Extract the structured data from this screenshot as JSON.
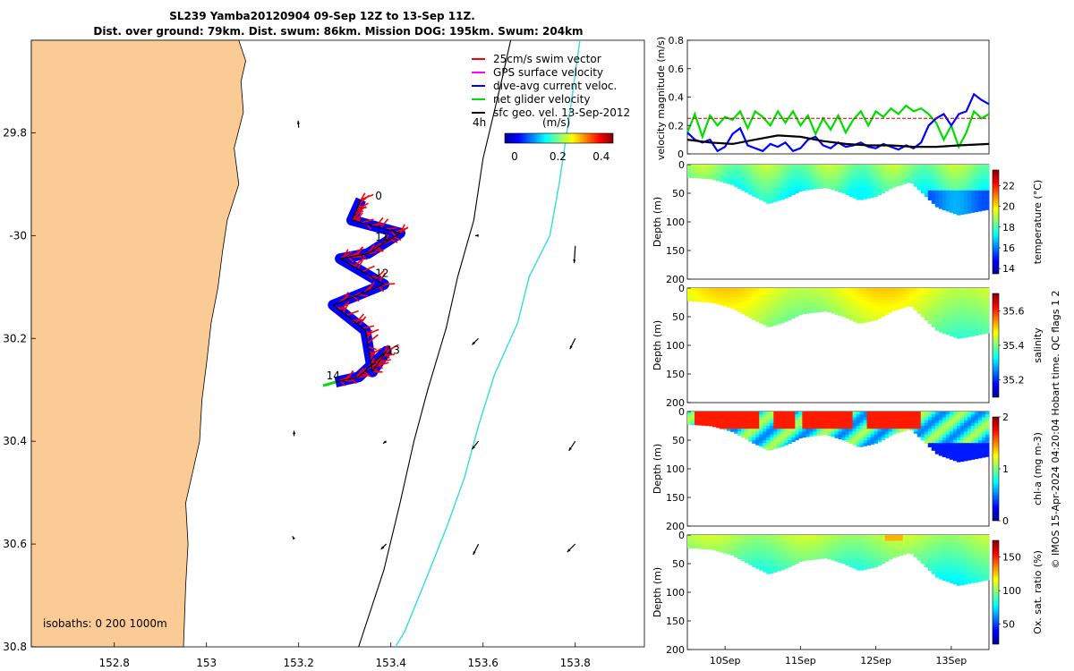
{
  "chart_data": [
    {
      "type": "map",
      "title_lines": [
        "SL239 Yamba20120904 09-Sep 12Z to 13-Sep 11Z.",
        "Dist. over ground: 79km. Dist. swum: 86km. Mission DOG: 195km. Swum: 204km"
      ],
      "xlim": [
        152.62,
        153.95
      ],
      "ylim": [
        -30.8,
        -29.62
      ],
      "x_ticks": [
        152.8,
        153.0,
        153.2,
        153.4,
        153.6,
        153.8
      ],
      "x_tick_labels": [
        "152.8",
        "153",
        "153.2",
        "153.4",
        "153.6",
        "153.8"
      ],
      "y_ticks": [
        -29.8,
        -30.0,
        -30.2,
        -30.4,
        -30.6,
        -30.8
      ],
      "y_tick_labels": [
        "29.8",
        "-30",
        "30.2",
        "30.4",
        "30.6",
        "30.8"
      ],
      "legend": [
        {
          "label": "25cm/s swim vector",
          "color": "#ff0000"
        },
        {
          "label": "GPS surface velocity",
          "color": "#ff00ff"
        },
        {
          "label": "dive-avg current veloc.",
          "color": "#0000ff"
        },
        {
          "label": "net glider velocity",
          "color": "#00dd00"
        },
        {
          "label": "sfc geo. vel. 13-Sep-2012",
          "color": "#000000"
        }
      ],
      "colorbar": {
        "label": "(m/s)",
        "ticks": [
          "0",
          "0.2",
          "0.4"
        ],
        "range": [
          0,
          0.5
        ],
        "note": "4h"
      },
      "isobath_label": "isobaths: 0   200  1000m",
      "day_labels": [
        {
          "text": "0",
          "lon": 153.366,
          "lat": -29.93
        },
        {
          "text": "11",
          "lon": 153.366,
          "lat": -30.01
        },
        {
          "text": "12",
          "lon": 153.366,
          "lat": -30.08
        },
        {
          "text": "13",
          "lon": 153.39,
          "lat": -30.23
        },
        {
          "text": "14",
          "lon": 153.26,
          "lat": -30.28
        }
      ],
      "track": [
        [
          153.335,
          -29.93
        ],
        [
          153.315,
          -29.97
        ],
        [
          153.42,
          -29.995
        ],
        [
          153.35,
          -30.035
        ],
        [
          153.29,
          -30.045
        ],
        [
          153.385,
          -30.095
        ],
        [
          153.275,
          -30.135
        ],
        [
          153.345,
          -30.185
        ],
        [
          153.36,
          -30.265
        ],
        [
          153.39,
          -30.225
        ],
        [
          153.33,
          -30.275
        ],
        [
          153.28,
          -30.285
        ]
      ],
      "coast": [
        [
          152.62,
          -29.62
        ],
        [
          153.07,
          -29.62
        ],
        [
          153.085,
          -29.66
        ],
        [
          153.075,
          -29.7
        ],
        [
          153.08,
          -29.76
        ],
        [
          153.06,
          -29.83
        ],
        [
          153.07,
          -29.9
        ],
        [
          153.045,
          -29.97
        ],
        [
          153.035,
          -30.03
        ],
        [
          153.025,
          -30.1
        ],
        [
          153.01,
          -30.17
        ],
        [
          153.0,
          -30.25
        ],
        [
          152.99,
          -30.32
        ],
        [
          152.985,
          -30.4
        ],
        [
          152.97,
          -30.46
        ],
        [
          152.955,
          -30.52
        ],
        [
          152.96,
          -30.6
        ],
        [
          152.955,
          -30.68
        ],
        [
          152.95,
          -30.8
        ],
        [
          152.62,
          -30.8
        ]
      ],
      "isobath_200": [
        [
          153.66,
          -29.62
        ],
        [
          153.64,
          -29.7
        ],
        [
          153.6,
          -29.85
        ],
        [
          153.58,
          -29.97
        ],
        [
          153.545,
          -30.08
        ],
        [
          153.52,
          -30.18
        ],
        [
          153.48,
          -30.3
        ],
        [
          153.45,
          -30.4
        ],
        [
          153.42,
          -30.52
        ],
        [
          153.385,
          -30.65
        ],
        [
          153.33,
          -30.8
        ]
      ],
      "isobath_1000": [
        [
          153.81,
          -29.62
        ],
        [
          153.79,
          -29.75
        ],
        [
          153.765,
          -29.9
        ],
        [
          153.745,
          -30.0
        ],
        [
          153.7,
          -30.08
        ],
        [
          153.675,
          -30.17
        ],
        [
          153.625,
          -30.27
        ],
        [
          153.59,
          -30.37
        ],
        [
          153.56,
          -30.47
        ],
        [
          153.52,
          -30.57
        ],
        [
          153.48,
          -30.66
        ],
        [
          153.43,
          -30.77
        ],
        [
          153.41,
          -30.8
        ]
      ],
      "current_arrows": [
        {
          "lon": 153.2,
          "lat": -29.79,
          "u": -0.1,
          "v": 1.3
        },
        {
          "lon": 153.59,
          "lat": -30.0,
          "u": -0.6,
          "v": 0
        },
        {
          "lon": 153.8,
          "lat": -30.02,
          "u": -0.2,
          "v": -3.2
        },
        {
          "lon": 153.59,
          "lat": -30.2,
          "u": -1.2,
          "v": -1.2
        },
        {
          "lon": 153.8,
          "lat": -30.2,
          "u": -1.0,
          "v": -2.0
        },
        {
          "lon": 153.19,
          "lat": -30.39,
          "u": 0,
          "v": 1.0
        },
        {
          "lon": 153.39,
          "lat": -30.4,
          "u": -0.6,
          "v": -0.4
        },
        {
          "lon": 153.59,
          "lat": -30.4,
          "u": -1.2,
          "v": -1.5
        },
        {
          "lon": 153.8,
          "lat": -30.4,
          "u": -1.2,
          "v": -1.8
        },
        {
          "lon": 153.19,
          "lat": -30.59,
          "u": -0.3,
          "v": 0.5
        },
        {
          "lon": 153.39,
          "lat": -30.6,
          "u": -1.0,
          "v": -1.0
        },
        {
          "lon": 153.59,
          "lat": -30.6,
          "u": -1.0,
          "v": -2.0
        },
        {
          "lon": 153.8,
          "lat": -30.6,
          "u": -1.5,
          "v": -1.5
        }
      ]
    },
    {
      "type": "line",
      "ylabel": "velocity magnitude (m/s)",
      "ylim": [
        0,
        0.8
      ],
      "y_ticks": [
        "0",
        "0.2",
        "0.4",
        "0.6",
        "0.8"
      ],
      "xlim": [
        9.5,
        13.5
      ],
      "series": [
        {
          "name": "net glider velocity",
          "color": "#00dd00",
          "x": [
            9.5,
            9.6,
            9.7,
            9.8,
            9.9,
            10.0,
            10.1,
            10.2,
            10.3,
            10.4,
            10.5,
            10.6,
            10.7,
            10.8,
            10.9,
            11.0,
            11.1,
            11.2,
            11.3,
            11.4,
            11.5,
            11.6,
            11.7,
            11.8,
            11.9,
            12.0,
            12.1,
            12.2,
            12.3,
            12.4,
            12.5,
            12.6,
            12.7,
            12.8,
            12.9,
            13.0,
            13.1,
            13.2,
            13.3,
            13.4,
            13.5
          ],
          "values": [
            0.15,
            0.28,
            0.12,
            0.27,
            0.2,
            0.26,
            0.24,
            0.3,
            0.18,
            0.3,
            0.26,
            0.2,
            0.3,
            0.22,
            0.3,
            0.2,
            0.27,
            0.14,
            0.25,
            0.17,
            0.27,
            0.15,
            0.24,
            0.3,
            0.2,
            0.3,
            0.26,
            0.32,
            0.28,
            0.34,
            0.3,
            0.32,
            0.28,
            0.22,
            0.1,
            0.2,
            0.05,
            0.15,
            0.3,
            0.25,
            0.28
          ]
        },
        {
          "name": "dive-avg current veloc.",
          "color": "#0000ff",
          "x": [
            9.5,
            9.6,
            9.7,
            9.8,
            9.9,
            10.0,
            10.1,
            10.2,
            10.3,
            10.4,
            10.5,
            10.6,
            10.7,
            10.8,
            10.9,
            11.0,
            11.1,
            11.2,
            11.3,
            11.4,
            11.5,
            11.6,
            11.7,
            11.8,
            11.9,
            12.0,
            12.1,
            12.2,
            12.3,
            12.4,
            12.5,
            12.6,
            12.7,
            12.8,
            12.9,
            13.0,
            13.1,
            13.2,
            13.3,
            13.4,
            13.5
          ],
          "values": [
            0.15,
            0.1,
            0.08,
            0.1,
            0.02,
            0.05,
            0.14,
            0.18,
            0.06,
            0.04,
            0.02,
            0.07,
            0.05,
            0.08,
            0.02,
            0.04,
            0.1,
            0.12,
            0.06,
            0.04,
            0.08,
            0.05,
            0.06,
            0.08,
            0.05,
            0.04,
            0.07,
            0.05,
            0.03,
            0.06,
            0.04,
            0.08,
            0.2,
            0.25,
            0.28,
            0.2,
            0.28,
            0.3,
            0.42,
            0.38,
            0.35
          ]
        },
        {
          "name": "sfc geo. vel.",
          "color": "#000000",
          "x": [
            9.5,
            9.8,
            10.1,
            10.4,
            10.7,
            11.0,
            11.3,
            11.6,
            11.9,
            12.2,
            12.5,
            12.8,
            13.1,
            13.5
          ],
          "values": [
            0.1,
            0.08,
            0.07,
            0.1,
            0.13,
            0.12,
            0.09,
            0.07,
            0.06,
            0.06,
            0.05,
            0.05,
            0.06,
            0.07
          ]
        },
        {
          "name": "reference",
          "color": "#cc0000",
          "x": [
            9.5,
            13.5
          ],
          "values": [
            0.25,
            0.25
          ]
        }
      ]
    },
    {
      "type": "heatmap",
      "variable": "temperature",
      "ylabel": "Depth (m)",
      "cbar_label": "temperature (°C)",
      "cbar_ticks": [
        "14",
        "16",
        "18",
        "20",
        "22"
      ],
      "cbar_range": [
        13.5,
        23.5
      ],
      "y_ticks": [
        "0",
        "50",
        "100",
        "150",
        "200"
      ]
    },
    {
      "type": "heatmap",
      "variable": "salinity",
      "ylabel": "Depth (m)",
      "cbar_label": "salinity",
      "cbar_ticks": [
        "35.2",
        "35.4",
        "35.6"
      ],
      "cbar_range": [
        35.1,
        35.7
      ],
      "y_ticks": [
        "0",
        "50",
        "100",
        "150",
        "200"
      ]
    },
    {
      "type": "heatmap",
      "variable": "chl-a",
      "ylabel": "Depth (m)",
      "cbar_label": "chl-a (mg m-3)",
      "cbar_ticks": [
        "0",
        "1",
        "2"
      ],
      "cbar_range": [
        0,
        2
      ],
      "y_ticks": [
        "0",
        "50",
        "100",
        "150",
        "200"
      ]
    },
    {
      "type": "heatmap",
      "variable": "oxygen",
      "ylabel": "Depth (m)",
      "cbar_label": "Ox. sat. ratio (%)",
      "cbar_ticks": [
        "50",
        "100",
        "150"
      ],
      "cbar_range": [
        20,
        175
      ],
      "y_ticks": [
        "0",
        "50",
        "100",
        "150",
        "200"
      ],
      "x_tick_labels": [
        "10Sep",
        "11Sep",
        "12Sep",
        "13Sep"
      ],
      "x_ticks": [
        10,
        11,
        12,
        13
      ]
    }
  ],
  "side_note": "© IMOS 15-Apr-2024 04:20:04 Hobart time. QC flags 1  2"
}
